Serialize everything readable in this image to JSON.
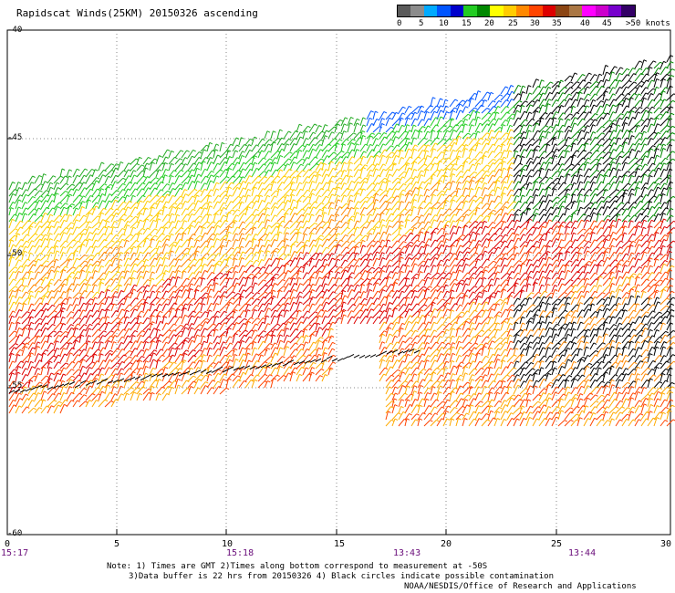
{
  "title": "Rapidscat Winds(25KM) 20150326 ascending",
  "legend": {
    "colors": [
      "#5a5a5a",
      "#8c8c8c",
      "#00aaff",
      "#0055ff",
      "#0000cc",
      "#22cc22",
      "#008800",
      "#ffff00",
      "#ffcc00",
      "#ff8800",
      "#ff4400",
      "#dd0000",
      "#8b4513",
      "#aa7744",
      "#ff00ff",
      "#cc00cc",
      "#7700cc",
      "#330066"
    ],
    "labels": [
      "0",
      "5",
      "10",
      "15",
      "20",
      "25",
      "30",
      "35",
      "40",
      "45",
      ">50 knots"
    ]
  },
  "axes": {
    "lat_labels": [
      "-40",
      "-45",
      "-50",
      "-55",
      "-60"
    ],
    "lon_labels": [
      "0",
      "5",
      "10",
      "15",
      "20",
      "25",
      "30"
    ],
    "time_labels": [
      "15:17",
      "15:18",
      "13:43",
      "13:44"
    ]
  },
  "notes": {
    "line1": "Note: 1) Times are GMT 2)Times along bottom correspond to measurement at -50S",
    "line2": "3)Data buffer is 22 hrs from 20150326 4) Black circles indicate possible contamination",
    "credit": "NOAA/NESDIS/Office of Research and Applications"
  },
  "colors": {
    "rain_flag": "#000000",
    "grid": "#888888"
  },
  "icons": [
    "wind-barb-icon"
  ]
}
